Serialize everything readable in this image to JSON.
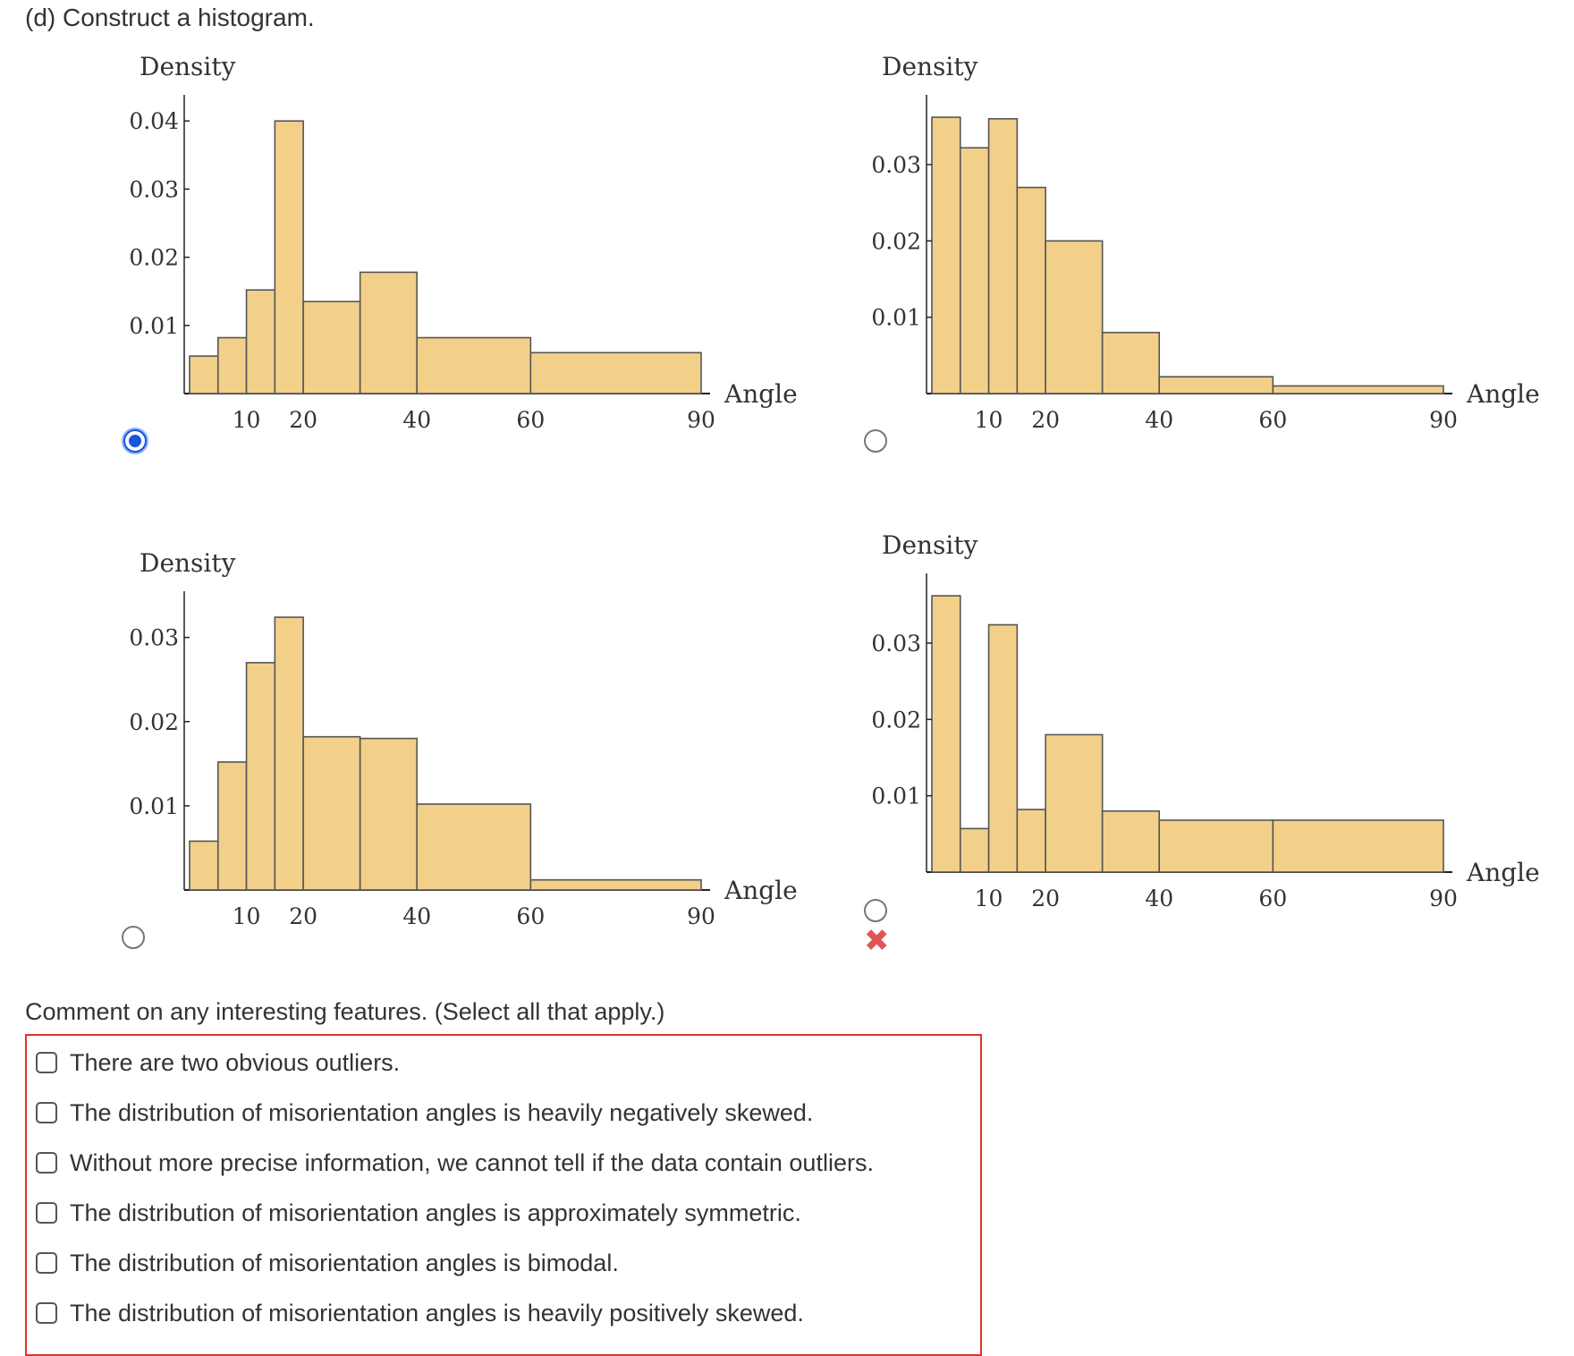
{
  "part_d_label": "(d) Construct a histogram.",
  "charts": [
    {
      "id": "A",
      "selected": true,
      "wrong": false
    },
    {
      "id": "B",
      "selected": false,
      "wrong": false
    },
    {
      "id": "C",
      "selected": false,
      "wrong": false
    },
    {
      "id": "D",
      "selected": false,
      "wrong": true
    }
  ],
  "colors": {
    "bar_fill": "#f3d08a",
    "bar_stroke": "#555555",
    "radio_selected": "#1a56db",
    "error": "#e25555"
  },
  "chart_data": [
    {
      "type": "bar",
      "ylabel": "Density",
      "xlabel": "Angle",
      "bins": [
        [
          0,
          5
        ],
        [
          5,
          10
        ],
        [
          10,
          15
        ],
        [
          15,
          20
        ],
        [
          20,
          30
        ],
        [
          30,
          40
        ],
        [
          40,
          60
        ],
        [
          60,
          90
        ]
      ],
      "values": [
        0.0055,
        0.0082,
        0.0152,
        0.04,
        0.0135,
        0.0178,
        0.0082,
        0.006
      ],
      "xticks": [
        10,
        20,
        40,
        60,
        90
      ],
      "yticks": [
        0.01,
        0.02,
        0.03,
        0.04
      ],
      "ylim": [
        0,
        0.042
      ]
    },
    {
      "type": "bar",
      "ylabel": "Density",
      "xlabel": "Angle",
      "bins": [
        [
          0,
          5
        ],
        [
          5,
          10
        ],
        [
          10,
          15
        ],
        [
          15,
          20
        ],
        [
          20,
          30
        ],
        [
          30,
          40
        ],
        [
          40,
          60
        ],
        [
          60,
          90
        ]
      ],
      "values": [
        0.0362,
        0.0322,
        0.036,
        0.027,
        0.02,
        0.008,
        0.0022,
        0.001
      ],
      "xticks": [
        10,
        20,
        40,
        60,
        90
      ],
      "yticks": [
        0.01,
        0.02,
        0.03
      ],
      "ylim": [
        0,
        0.0375
      ]
    },
    {
      "type": "bar",
      "ylabel": "Density",
      "xlabel": "Angle",
      "bins": [
        [
          0,
          5
        ],
        [
          5,
          10
        ],
        [
          10,
          15
        ],
        [
          15,
          20
        ],
        [
          20,
          30
        ],
        [
          30,
          40
        ],
        [
          40,
          60
        ],
        [
          60,
          90
        ]
      ],
      "values": [
        0.0058,
        0.0152,
        0.027,
        0.0324,
        0.0182,
        0.018,
        0.0102,
        0.0012
      ],
      "xticks": [
        10,
        20,
        40,
        60,
        90
      ],
      "yticks": [
        0.01,
        0.02,
        0.03
      ],
      "ylim": [
        0,
        0.034
      ]
    },
    {
      "type": "bar",
      "ylabel": "Density",
      "xlabel": "Angle",
      "bins": [
        [
          0,
          5
        ],
        [
          5,
          10
        ],
        [
          10,
          15
        ],
        [
          15,
          20
        ],
        [
          20,
          30
        ],
        [
          30,
          40
        ],
        [
          40,
          60
        ],
        [
          60,
          90
        ]
      ],
      "values": [
        0.0362,
        0.0057,
        0.0324,
        0.0082,
        0.018,
        0.008,
        0.0068,
        0.0068
      ],
      "xticks": [
        10,
        20,
        40,
        60,
        90
      ],
      "yticks": [
        0.01,
        0.02,
        0.03
      ],
      "ylim": [
        0,
        0.0375
      ]
    }
  ],
  "comment_question": "Comment on any interesting features. (Select all that apply.)",
  "options": [
    "There are two obvious outliers.",
    "The distribution of misorientation angles is heavily negatively skewed.",
    "Without more precise information, we cannot tell if the data contain outliers.",
    "The distribution of misorientation angles is approximately symmetric.",
    "The distribution of misorientation angles is bimodal.",
    "The distribution of misorientation angles is heavily positively skewed."
  ]
}
